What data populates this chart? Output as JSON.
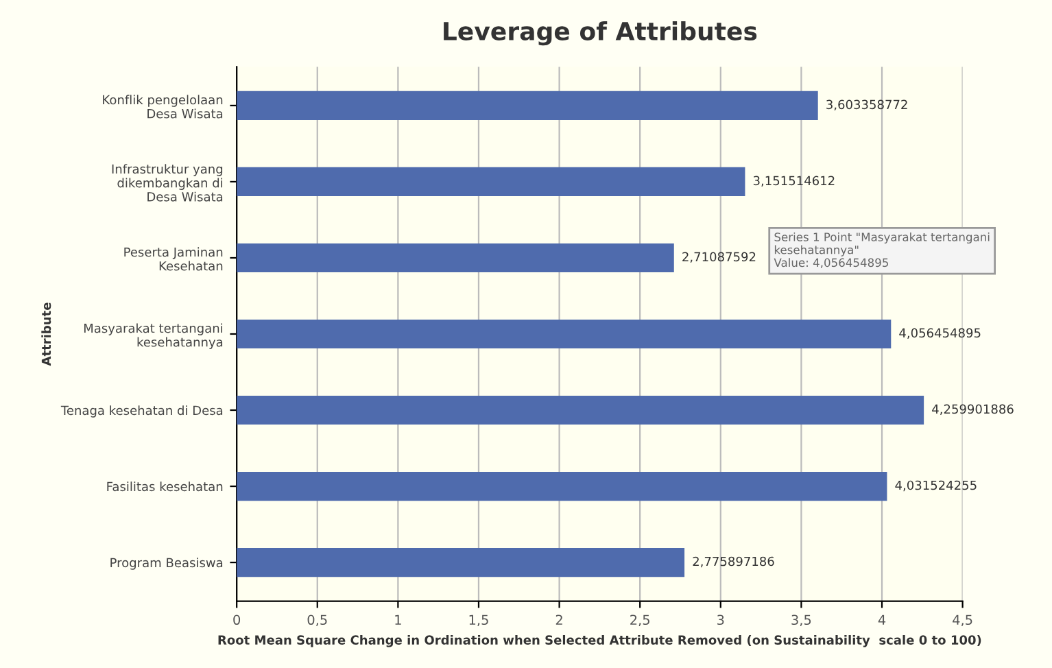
{
  "chart_data": {
    "type": "bar",
    "orientation": "horizontal",
    "title": "Leverage of Attributes",
    "xlabel": "Root Mean Square Change in Ordination when Selected Attribute Removed (on Sustainability  scale 0 to 100)",
    "ylabel": "Attribute",
    "categories": [
      "Konflik pengelolaan\nDesa Wisata",
      "Infrastruktur yang\ndikembangkan di\nDesa Wisata",
      "Peserta Jaminan\nKesehatan",
      "Masyarakat tertangani\nkesehatannya",
      "Tenaga kesehatan di Desa",
      "Fasilitas kesehatan",
      "Program Beasiswa"
    ],
    "values": [
      3.603358772,
      3.151514612,
      2.71087592,
      4.056454895,
      4.259901886,
      4.031524255,
      2.775897186
    ],
    "value_labels": [
      "3,603358772",
      "3,151514612",
      "2,71087592",
      "4,056454895",
      "4,259901886",
      "4,031524255",
      "2,775897186"
    ],
    "color": "#4f6bad",
    "xlim": [
      0,
      4.5
    ],
    "xticks": [
      0,
      {
        "value": 0.5,
        "label": "0,5"
      },
      1,
      {
        "value": 1.5,
        "label": "1,5"
      },
      2,
      {
        "value": 2.5,
        "label": "2,5"
      },
      3,
      {
        "value": 3.5,
        "label": "3,5"
      },
      4,
      {
        "value": 4.5,
        "label": "4,5"
      }
    ],
    "grid": "x",
    "annotations": [
      "Series 1 Point \"Masyarakat tertangani\nkesehatannya\"\nValue: 4,056454895"
    ]
  }
}
